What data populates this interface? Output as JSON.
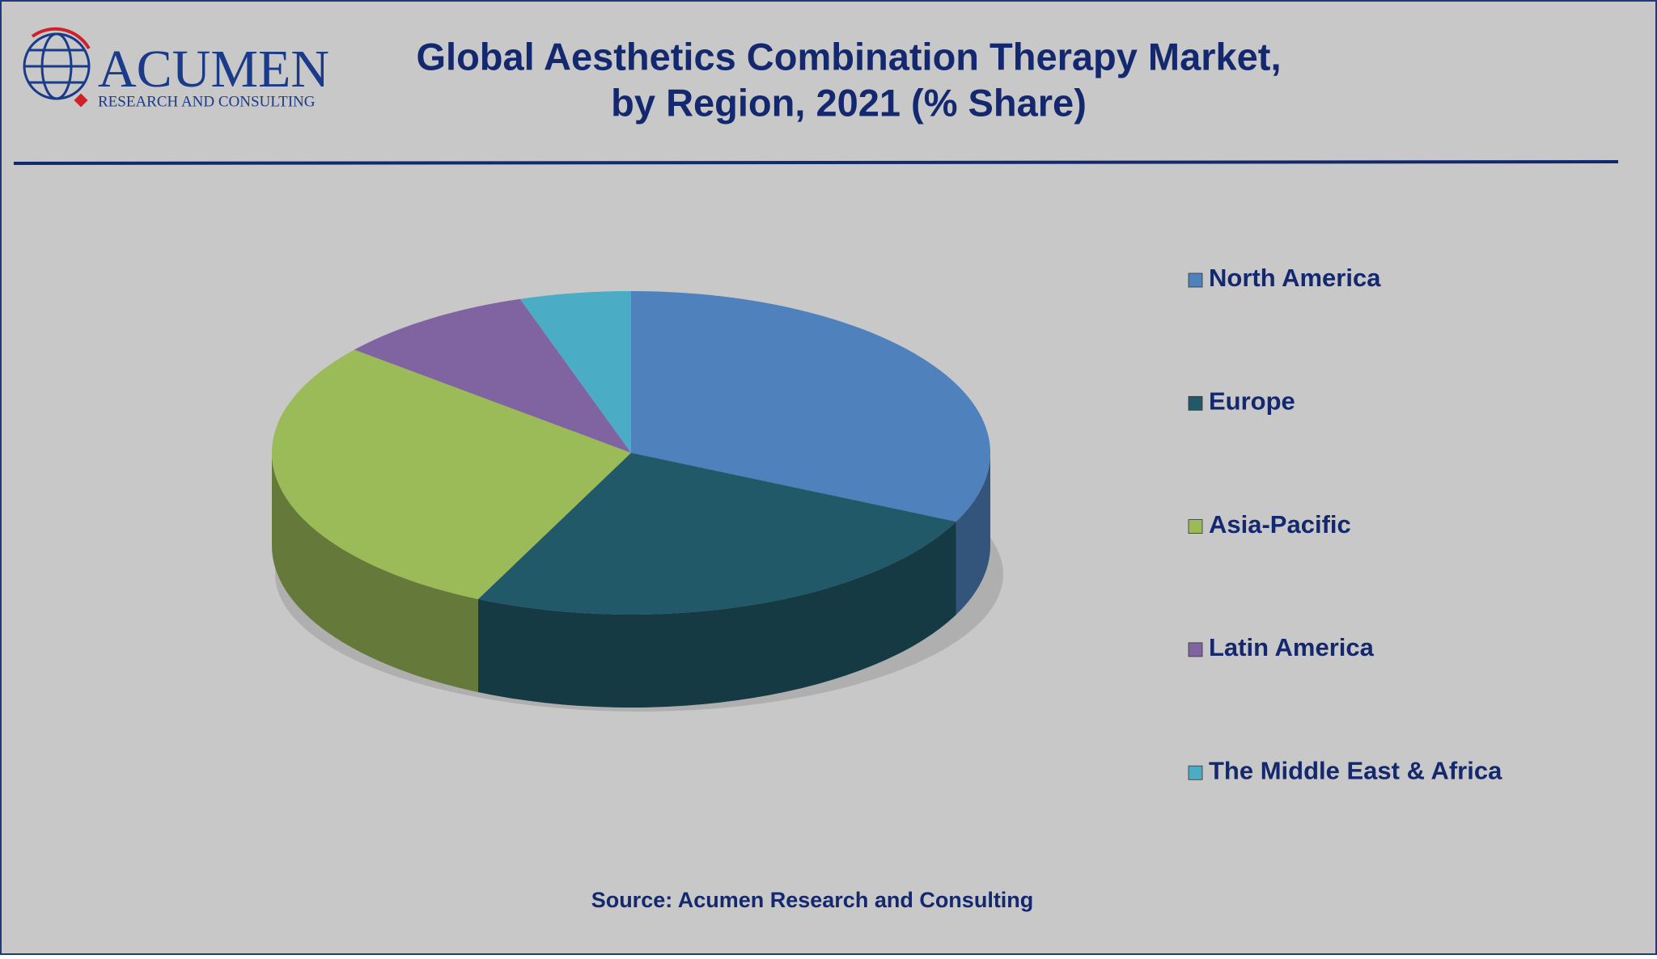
{
  "logo": {
    "name": "ACUMEN",
    "tagline": "RESEARCH AND CONSULTING"
  },
  "chart_data": {
    "type": "pie",
    "title": [
      "Global Aesthetics Combination Therapy Market,",
      "by Region, 2021 (% Share)"
    ],
    "categories": [
      "North America",
      "Europe",
      "Asia-Pacific",
      "Latin America",
      "The Middle East & Africa"
    ],
    "values": [
      32,
      25,
      29,
      9,
      5
    ],
    "colors": [
      "#4f81bd",
      "#215968",
      "#9bbb59",
      "#8064a2",
      "#4bacc6"
    ],
    "legend": "right",
    "source": "Source: Acumen Research and Consulting"
  }
}
